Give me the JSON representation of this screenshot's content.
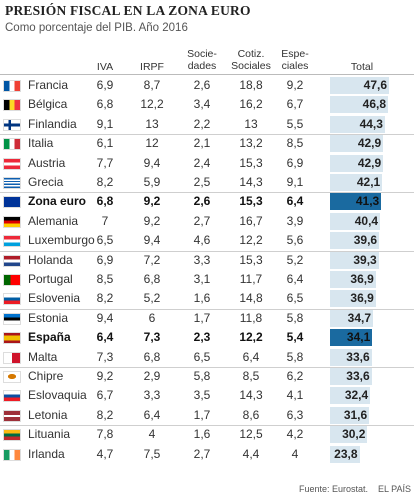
{
  "title": "PRESIÓN FISCAL EN LA ZONA EURO",
  "subtitle": "Como porcentaje del PIB. Año 2016",
  "headers": {
    "iva": "IVA",
    "irpf": "IRPF",
    "sociedades": "Socie-\ndades",
    "cotiz": "Cotiz.\nSociales",
    "especiales": "Espe-\nciales",
    "total": "Total"
  },
  "footer": {
    "source": "Fuente: Eurostat.",
    "brand": "EL PAÍS"
  },
  "colors": {
    "bar": "#d8e6ef",
    "bar_highlight": "#1a6aa0"
  },
  "chart_data": {
    "type": "table",
    "columns": [
      "IVA",
      "IRPF",
      "Sociedades",
      "Cotiz. Sociales",
      "Especiales",
      "Total"
    ],
    "total_range": [
      0,
      50
    ],
    "rows": [
      {
        "country": "Francia",
        "flag": "france-flag",
        "iva": "6,9",
        "irpf": "8,7",
        "soc": "2,6",
        "cotiz": "18,8",
        "esp": "9,2",
        "total": "47,6",
        "total_value": 47.6
      },
      {
        "country": "Bélgica",
        "flag": "belgium-flag",
        "iva": "6,8",
        "irpf": "12,2",
        "soc": "3,4",
        "cotiz": "16,2",
        "esp": "6,7",
        "total": "46,8",
        "total_value": 46.8
      },
      {
        "country": "Finlandia",
        "flag": "finland-flag",
        "iva": "9,1",
        "irpf": "13",
        "soc": "2,2",
        "cotiz": "13",
        "esp": "5,5",
        "total": "44,3",
        "total_value": 44.3
      },
      {
        "country": "Italia",
        "flag": "italy-flag",
        "iva": "6,1",
        "irpf": "12",
        "soc": "2,1",
        "cotiz": "13,2",
        "esp": "8,5",
        "total": "42,9",
        "total_value": 42.9
      },
      {
        "country": "Austria",
        "flag": "austria-flag",
        "iva": "7,7",
        "irpf": "9,4",
        "soc": "2,4",
        "cotiz": "15,3",
        "esp": "6,9",
        "total": "42,9",
        "total_value": 42.9
      },
      {
        "country": "Grecia",
        "flag": "greece-flag",
        "iva": "8,2",
        "irpf": "5,9",
        "soc": "2,5",
        "cotiz": "14,3",
        "esp": "9,1",
        "total": "42,1",
        "total_value": 42.1
      },
      {
        "country": "Zona euro",
        "flag": "eu-flag",
        "iva": "6,8",
        "irpf": "9,2",
        "soc": "2,6",
        "cotiz": "15,3",
        "esp": "6,4",
        "total": "41,3",
        "total_value": 41.3,
        "highlight": true
      },
      {
        "country": "Alemania",
        "flag": "germany-flag",
        "iva": "7",
        "irpf": "9,2",
        "soc": "2,7",
        "cotiz": "16,7",
        "esp": "3,9",
        "total": "40,4",
        "total_value": 40.4
      },
      {
        "country": "Luxemburgo",
        "flag": "luxembourg-flag",
        "iva": "6,5",
        "irpf": "9,4",
        "soc": "4,6",
        "cotiz": "12,2",
        "esp": "5,6",
        "total": "39,6",
        "total_value": 39.6
      },
      {
        "country": "Holanda",
        "flag": "netherlands-flag",
        "iva": "6,9",
        "irpf": "7,2",
        "soc": "3,3",
        "cotiz": "15,3",
        "esp": "5,2",
        "total": "39,3",
        "total_value": 39.3
      },
      {
        "country": "Portugal",
        "flag": "portugal-flag",
        "iva": "8,5",
        "irpf": "6,8",
        "soc": "3,1",
        "cotiz": "11,7",
        "esp": "6,4",
        "total": "36,9",
        "total_value": 36.9
      },
      {
        "country": "Eslovenia",
        "flag": "slovenia-flag",
        "iva": "8,2",
        "irpf": "5,2",
        "soc": "1,6",
        "cotiz": "14,8",
        "esp": "6,5",
        "total": "36,9",
        "total_value": 36.9
      },
      {
        "country": "Estonia",
        "flag": "estonia-flag",
        "iva": "9,4",
        "irpf": "6",
        "soc": "1,7",
        "cotiz": "11,8",
        "esp": "5,8",
        "total": "34,7",
        "total_value": 34.7
      },
      {
        "country": "España",
        "flag": "spain-flag",
        "iva": "6,4",
        "irpf": "7,3",
        "soc": "2,3",
        "cotiz": "12,2",
        "esp": "5,4",
        "total": "34,1",
        "total_value": 34.1,
        "highlight": true
      },
      {
        "country": "Malta",
        "flag": "malta-flag",
        "iva": "7,3",
        "irpf": "6,8",
        "soc": "6,5",
        "cotiz": "6,4",
        "esp": "5,8",
        "total": "33,6",
        "total_value": 33.6
      },
      {
        "country": "Chipre",
        "flag": "cyprus-flag",
        "iva": "9,2",
        "irpf": "2,9",
        "soc": "5,8",
        "cotiz": "8,5",
        "esp": "6,2",
        "total": "33,6",
        "total_value": 33.6
      },
      {
        "country": "Eslovaquia",
        "flag": "slovakia-flag",
        "iva": "6,7",
        "irpf": "3,3",
        "soc": "3,5",
        "cotiz": "14,3",
        "esp": "4,1",
        "total": "32,4",
        "total_value": 32.4
      },
      {
        "country": "Letonia",
        "flag": "latvia-flag",
        "iva": "8,2",
        "irpf": "6,4",
        "soc": "1,7",
        "cotiz": "8,6",
        "esp": "6,3",
        "total": "31,6",
        "total_value": 31.6
      },
      {
        "country": "Lituania",
        "flag": "lithuania-flag",
        "iva": "7,8",
        "irpf": "4",
        "soc": "1,6",
        "cotiz": "12,5",
        "esp": "4,2",
        "total": "30,2",
        "total_value": 30.2
      },
      {
        "country": "Irlanda",
        "flag": "ireland-flag",
        "iva": "4,7",
        "irpf": "7,5",
        "soc": "2,7",
        "cotiz": "4,4",
        "esp": "4",
        "total": "23,8",
        "total_value": 23.8
      }
    ],
    "group_separators_after": [
      2,
      5,
      8,
      11,
      14,
      17
    ]
  }
}
